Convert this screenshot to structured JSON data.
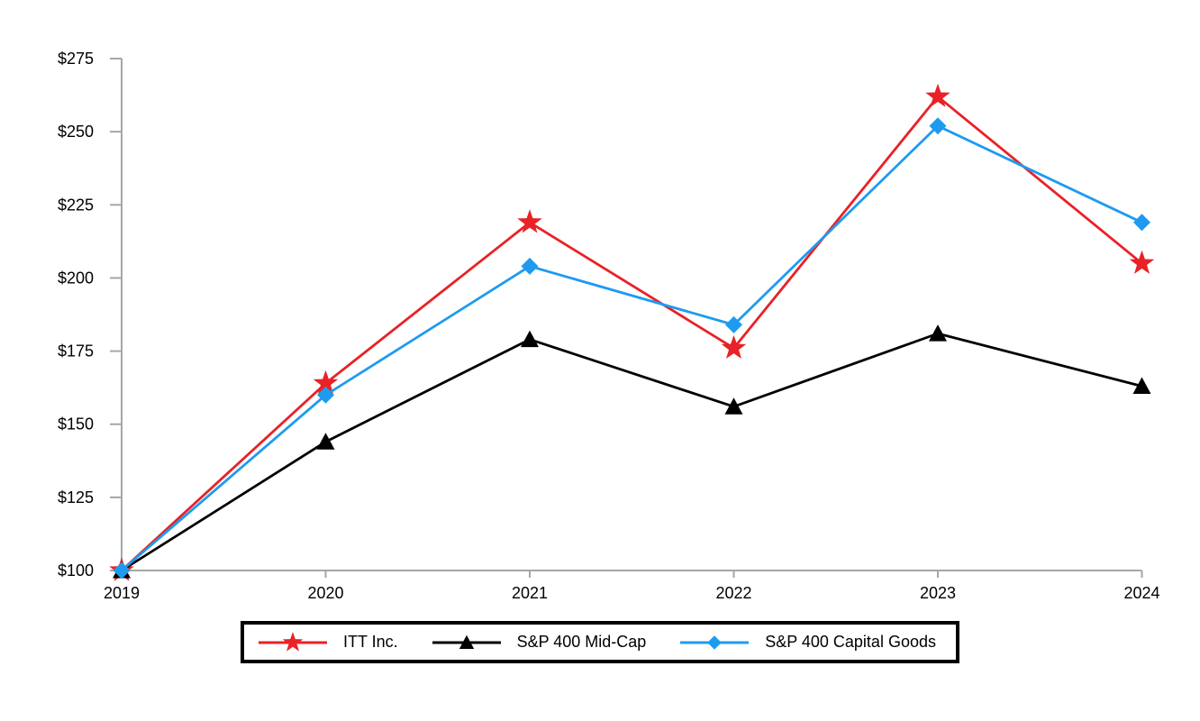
{
  "chart_data": {
    "type": "line",
    "title": "",
    "xlabel": "",
    "ylabel": "",
    "x_labels": [
      "2019",
      "2020",
      "2021",
      "2022",
      "2023",
      "2024"
    ],
    "y_ticks": [
      100,
      125,
      150,
      175,
      200,
      225,
      250,
      275
    ],
    "y_tick_labels": [
      "$100",
      "$125",
      "$150",
      "$175",
      "$200",
      "$225",
      "$250",
      "$275"
    ],
    "ylim": [
      100,
      275
    ],
    "grid": false,
    "legend_position": "bottom",
    "axis_color": "#a6a6a6",
    "text_color": "#000000",
    "series": [
      {
        "name": "ITT Inc.",
        "color": "#e82227",
        "marker": "star",
        "values": [
          100,
          164,
          219,
          176,
          262,
          205
        ]
      },
      {
        "name": "S&P 400 Mid-Cap",
        "color": "#000000",
        "marker": "triangle",
        "values": [
          100,
          144,
          179,
          156,
          181,
          163
        ]
      },
      {
        "name": "S&P 400 Capital Goods",
        "color": "#1e9bf0",
        "marker": "diamond",
        "values": [
          100,
          160,
          204,
          184,
          252,
          219
        ]
      }
    ]
  }
}
